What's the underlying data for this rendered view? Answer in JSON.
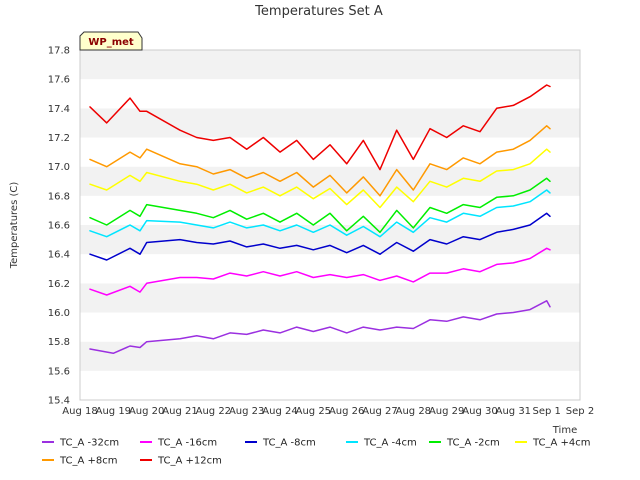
{
  "chart_data": {
    "type": "line",
    "title": "Temperatures Set A",
    "xlabel": "Time",
    "ylabel": "Temperatures (C)",
    "ylim": [
      15.4,
      17.8
    ],
    "y_ticks": [
      "15.4",
      "15.6",
      "15.8",
      "16.0",
      "16.2",
      "16.4",
      "16.6",
      "16.8",
      "17.0",
      "17.2",
      "17.4",
      "17.6",
      "17.8"
    ],
    "x_ticks": [
      "Aug 18",
      "Aug 19",
      "Aug 20",
      "Aug 21",
      "Aug 22",
      "Aug 23",
      "Aug 24",
      "Aug 25",
      "Aug 26",
      "Aug 27",
      "Aug 28",
      "Aug 29",
      "Aug 30",
      "Aug 31",
      "Sep 1",
      "Sep 2"
    ],
    "x_range_days": [
      0,
      15
    ],
    "badge": "WP_met",
    "grid": "horizontal bands",
    "legend_position": "bottom",
    "series": [
      {
        "name": "TC_A -32cm",
        "color": "#9b30e0",
        "x": [
          0.3,
          1,
          1.5,
          1.8,
          2,
          3,
          3.5,
          4,
          4.5,
          5,
          5.5,
          6,
          6.5,
          7,
          7.5,
          8,
          8.5,
          9,
          9.5,
          10,
          10.5,
          11,
          11.5,
          12,
          12.5,
          13,
          13.5,
          14,
          14.1
        ],
        "y": [
          15.75,
          15.72,
          15.77,
          15.76,
          15.8,
          15.82,
          15.84,
          15.82,
          15.86,
          15.85,
          15.88,
          15.86,
          15.9,
          15.87,
          15.9,
          15.86,
          15.9,
          15.88,
          15.9,
          15.89,
          15.95,
          15.94,
          15.97,
          15.95,
          15.99,
          16.0,
          16.02,
          16.08,
          16.04
        ]
      },
      {
        "name": "TC_A -16cm",
        "color": "#ff00ff",
        "x": [
          0.3,
          0.8,
          1.5,
          1.8,
          2,
          3,
          3.5,
          4,
          4.5,
          5,
          5.5,
          6,
          6.5,
          7,
          7.5,
          8,
          8.5,
          9,
          9.5,
          10,
          10.5,
          11,
          11.5,
          12,
          12.5,
          13,
          13.5,
          14,
          14.1
        ],
        "y": [
          16.16,
          16.12,
          16.18,
          16.14,
          16.2,
          16.24,
          16.24,
          16.23,
          16.27,
          16.25,
          16.28,
          16.25,
          16.28,
          16.24,
          16.26,
          16.24,
          16.26,
          16.22,
          16.25,
          16.21,
          16.27,
          16.27,
          16.3,
          16.28,
          16.33,
          16.34,
          16.37,
          16.44,
          16.43
        ]
      },
      {
        "name": "TC_A -8cm",
        "color": "#0000cc",
        "x": [
          0.3,
          0.8,
          1.5,
          1.8,
          2,
          3,
          3.5,
          4,
          4.5,
          5,
          5.5,
          6,
          6.5,
          7,
          7.5,
          8,
          8.5,
          9,
          9.5,
          10,
          10.5,
          11,
          11.5,
          12,
          12.5,
          13,
          13.5,
          14,
          14.1
        ],
        "y": [
          16.4,
          16.36,
          16.44,
          16.4,
          16.48,
          16.5,
          16.48,
          16.47,
          16.49,
          16.45,
          16.47,
          16.44,
          16.46,
          16.43,
          16.46,
          16.41,
          16.46,
          16.4,
          16.48,
          16.42,
          16.5,
          16.47,
          16.52,
          16.5,
          16.55,
          16.57,
          16.6,
          16.68,
          16.66
        ]
      },
      {
        "name": "TC_A -4cm",
        "color": "#00e5ff",
        "x": [
          0.3,
          0.8,
          1.5,
          1.8,
          2,
          3,
          3.5,
          4,
          4.5,
          5,
          5.5,
          6,
          6.5,
          7,
          7.5,
          8,
          8.5,
          9,
          9.5,
          10,
          10.5,
          11,
          11.5,
          12,
          12.5,
          13,
          13.5,
          14,
          14.1
        ],
        "y": [
          16.56,
          16.52,
          16.6,
          16.56,
          16.63,
          16.62,
          16.6,
          16.58,
          16.62,
          16.58,
          16.6,
          16.56,
          16.6,
          16.55,
          16.6,
          16.53,
          16.59,
          16.52,
          16.62,
          16.55,
          16.65,
          16.62,
          16.68,
          16.66,
          16.72,
          16.73,
          16.76,
          16.84,
          16.82
        ]
      },
      {
        "name": "TC_A -2cm",
        "color": "#00ee00",
        "x": [
          0.3,
          0.8,
          1.5,
          1.8,
          2,
          3,
          3.5,
          4,
          4.5,
          5,
          5.5,
          6,
          6.5,
          7,
          7.5,
          8,
          8.5,
          9,
          9.5,
          10,
          10.5,
          11,
          11.5,
          12,
          12.5,
          13,
          13.5,
          14,
          14.1
        ],
        "y": [
          16.65,
          16.6,
          16.7,
          16.66,
          16.74,
          16.7,
          16.68,
          16.65,
          16.7,
          16.64,
          16.68,
          16.62,
          16.68,
          16.6,
          16.68,
          16.56,
          16.66,
          16.55,
          16.7,
          16.58,
          16.72,
          16.68,
          16.74,
          16.72,
          16.79,
          16.8,
          16.84,
          16.92,
          16.9
        ]
      },
      {
        "name": "TC_A +4cm",
        "color": "#ffff00",
        "x": [
          0.3,
          0.8,
          1.5,
          1.8,
          2,
          3,
          3.5,
          4,
          4.5,
          5,
          5.5,
          6,
          6.5,
          7,
          7.5,
          8,
          8.5,
          9,
          9.5,
          10,
          10.5,
          11,
          11.5,
          12,
          12.5,
          13,
          13.5,
          14,
          14.1
        ],
        "y": [
          16.88,
          16.84,
          16.94,
          16.9,
          16.96,
          16.9,
          16.88,
          16.84,
          16.88,
          16.82,
          16.86,
          16.8,
          16.86,
          16.78,
          16.85,
          16.74,
          16.84,
          16.72,
          16.86,
          16.76,
          16.9,
          16.86,
          16.92,
          16.9,
          16.97,
          16.98,
          17.02,
          17.12,
          17.1
        ]
      },
      {
        "name": "TC_A +8cm",
        "color": "#ff9900",
        "x": [
          0.3,
          0.8,
          1.5,
          1.8,
          2,
          3,
          3.5,
          4,
          4.5,
          5,
          5.5,
          6,
          6.5,
          7,
          7.5,
          8,
          8.5,
          9,
          9.5,
          10,
          10.5,
          11,
          11.5,
          12,
          12.5,
          13,
          13.5,
          14,
          14.1
        ],
        "y": [
          17.05,
          17.0,
          17.1,
          17.06,
          17.12,
          17.02,
          17.0,
          16.95,
          16.98,
          16.92,
          16.96,
          16.9,
          16.96,
          16.86,
          16.94,
          16.82,
          16.93,
          16.8,
          16.98,
          16.84,
          17.02,
          16.98,
          17.06,
          17.02,
          17.1,
          17.12,
          17.18,
          17.28,
          17.26
        ]
      },
      {
        "name": "TC_A +12cm",
        "color": "#ee0000",
        "x": [
          0.3,
          0.8,
          1.5,
          1.8,
          2,
          3,
          3.5,
          4,
          4.5,
          5,
          5.5,
          6,
          6.5,
          7,
          7.5,
          8,
          8.5,
          9,
          9.5,
          10,
          10.5,
          11,
          11.5,
          12,
          12.5,
          13,
          13.5,
          14,
          14.1
        ],
        "y": [
          17.41,
          17.3,
          17.47,
          17.38,
          17.38,
          17.25,
          17.2,
          17.18,
          17.2,
          17.12,
          17.2,
          17.1,
          17.18,
          17.05,
          17.15,
          17.02,
          17.18,
          16.98,
          17.25,
          17.05,
          17.26,
          17.2,
          17.28,
          17.24,
          17.4,
          17.42,
          17.48,
          17.56,
          17.55
        ]
      }
    ]
  }
}
